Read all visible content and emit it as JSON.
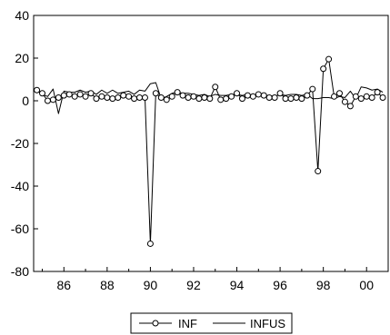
{
  "chart_data": {
    "type": "line",
    "title": "",
    "xlabel": "",
    "ylabel": "",
    "xlim": [
      1984.6,
      2001.0
    ],
    "ylim": [
      -80,
      40
    ],
    "yticks": [
      40,
      20,
      0,
      -20,
      -40,
      -60,
      -80
    ],
    "ytick_labels": [
      "40",
      "20",
      "0",
      "-20",
      "-40",
      "-60",
      "-80"
    ],
    "xticks": [
      1986,
      1988,
      1990,
      1992,
      1994,
      1996,
      1998,
      2000
    ],
    "xtick_labels": [
      "86",
      "88",
      "90",
      "92",
      "94",
      "96",
      "98",
      "00"
    ],
    "grid": false,
    "legend_position": "bottom-center",
    "series": [
      {
        "name": "INF",
        "marker": "circle-open",
        "color": "#000000",
        "x": [
          1984.75,
          1985.0,
          1985.25,
          1985.5,
          1985.75,
          1986.0,
          1986.25,
          1986.5,
          1986.75,
          1987.0,
          1987.25,
          1987.5,
          1987.75,
          1988.0,
          1988.25,
          1988.5,
          1988.75,
          1989.0,
          1989.25,
          1989.5,
          1989.75,
          1990.0,
          1990.25,
          1990.5,
          1990.75,
          1991.0,
          1991.25,
          1991.5,
          1991.75,
          1992.0,
          1992.25,
          1992.5,
          1992.75,
          1993.0,
          1993.25,
          1993.5,
          1993.75,
          1994.0,
          1994.25,
          1994.5,
          1994.75,
          1995.0,
          1995.25,
          1995.5,
          1995.75,
          1996.0,
          1996.25,
          1996.5,
          1996.75,
          1997.0,
          1997.25,
          1997.5,
          1997.75,
          1998.0,
          1998.25,
          1998.5,
          1998.75,
          1999.0,
          1999.25,
          1999.5,
          1999.75,
          2000.0,
          2000.25,
          2000.5,
          2000.75
        ],
        "values": [
          5,
          3.5,
          0,
          0.5,
          1.5,
          2.5,
          3,
          2,
          3,
          2,
          3.5,
          1,
          2,
          1.5,
          1,
          1.5,
          2.5,
          2,
          1,
          1.5,
          1.5,
          -67,
          3.5,
          1.5,
          0.5,
          2,
          4,
          2.5,
          1.5,
          2,
          1,
          1.5,
          1,
          6.5,
          0.5,
          1,
          2,
          3.5,
          1,
          2.5,
          2,
          3,
          2.5,
          1.5,
          1.5,
          3.5,
          1,
          1,
          1.5,
          1,
          2.5,
          5.5,
          -33,
          15,
          19.5,
          2,
          3.5,
          -0.5,
          -2.5,
          2,
          1,
          2,
          1.5,
          4,
          1.5
        ]
      },
      {
        "name": "INFUS",
        "marker": "none",
        "color": "#000000",
        "x": [
          1984.75,
          1985.0,
          1985.25,
          1985.5,
          1985.75,
          1986.0,
          1986.25,
          1986.5,
          1986.75,
          1987.0,
          1987.25,
          1987.5,
          1987.75,
          1988.0,
          1988.25,
          1988.5,
          1988.75,
          1989.0,
          1989.25,
          1989.5,
          1989.75,
          1990.0,
          1990.25,
          1990.5,
          1990.75,
          1991.0,
          1991.25,
          1991.5,
          1991.75,
          1992.0,
          1992.25,
          1992.5,
          1992.75,
          1993.0,
          1993.25,
          1993.5,
          1993.75,
          1994.0,
          1994.25,
          1994.5,
          1994.75,
          1995.0,
          1995.25,
          1995.5,
          1995.75,
          1996.0,
          1996.25,
          1996.5,
          1996.75,
          1997.0,
          1997.25,
          1997.5,
          1997.75,
          1998.0,
          1998.25,
          1998.5,
          1998.75,
          1999.0,
          1999.25,
          1999.5,
          1999.75,
          2000.0,
          2000.25,
          2000.5,
          2000.75
        ],
        "values": [
          5,
          3,
          2,
          5.5,
          -6,
          4.5,
          4,
          4,
          5,
          4,
          4.5,
          3,
          5,
          3.5,
          5,
          3.5,
          4,
          4.5,
          3,
          5,
          4.5,
          8,
          8.5,
          1,
          2,
          3.5,
          4,
          3.5,
          3.5,
          3,
          2.5,
          3,
          2,
          3,
          2.5,
          2.5,
          3,
          3,
          2.5,
          3,
          2.5,
          2.5,
          2,
          2.5,
          2,
          3,
          2.5,
          3,
          3,
          2.5,
          3,
          1,
          1,
          1.5,
          1.5,
          1,
          2,
          1.5,
          4.5,
          1,
          6.5,
          6,
          5,
          5.5,
          4
        ]
      }
    ]
  }
}
